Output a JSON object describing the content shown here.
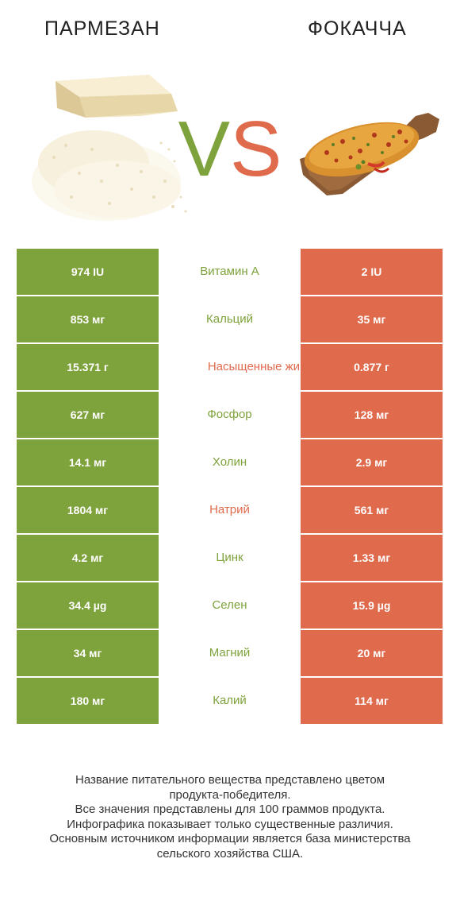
{
  "header": {
    "left_title": "ПАРМЕЗАН",
    "right_title": "ФОКАЧЧА",
    "vs_v": "V",
    "vs_s": "S"
  },
  "colors": {
    "left_accent": "#7ea23c",
    "right_accent": "#e06a4c"
  },
  "rows": [
    {
      "left": "974 IU",
      "name": "Витамин A",
      "right": "2 IU",
      "winner": "left"
    },
    {
      "left": "853 мг",
      "name": "Кальций",
      "right": "35 мг",
      "winner": "left"
    },
    {
      "left": "15.371 г",
      "name": "Насыщенные жиры",
      "right": "0.877 г",
      "winner": "right"
    },
    {
      "left": "627 мг",
      "name": "Фосфор",
      "right": "128 мг",
      "winner": "left"
    },
    {
      "left": "14.1 мг",
      "name": "Холин",
      "right": "2.9 мг",
      "winner": "left"
    },
    {
      "left": "1804 мг",
      "name": "Натрий",
      "right": "561 мг",
      "winner": "right"
    },
    {
      "left": "4.2 мг",
      "name": "Цинк",
      "right": "1.33 мг",
      "winner": "left"
    },
    {
      "left": "34.4 µg",
      "name": "Селен",
      "right": "15.9 µg",
      "winner": "left"
    },
    {
      "left": "34 мг",
      "name": "Магний",
      "right": "20 мг",
      "winner": "left"
    },
    {
      "left": "180 мг",
      "name": "Калий",
      "right": "114 мг",
      "winner": "left"
    }
  ],
  "footer": {
    "line1": "Название питательного вещества представлено цветом",
    "line2": "продукта-победителя.",
    "line3": "Все значения представлены для 100 граммов продукта.",
    "line4": "Инфографика показывает только существенные различия.",
    "line5": "Основным источником информации является база министерства",
    "line6": "сельского хозяйства США."
  }
}
